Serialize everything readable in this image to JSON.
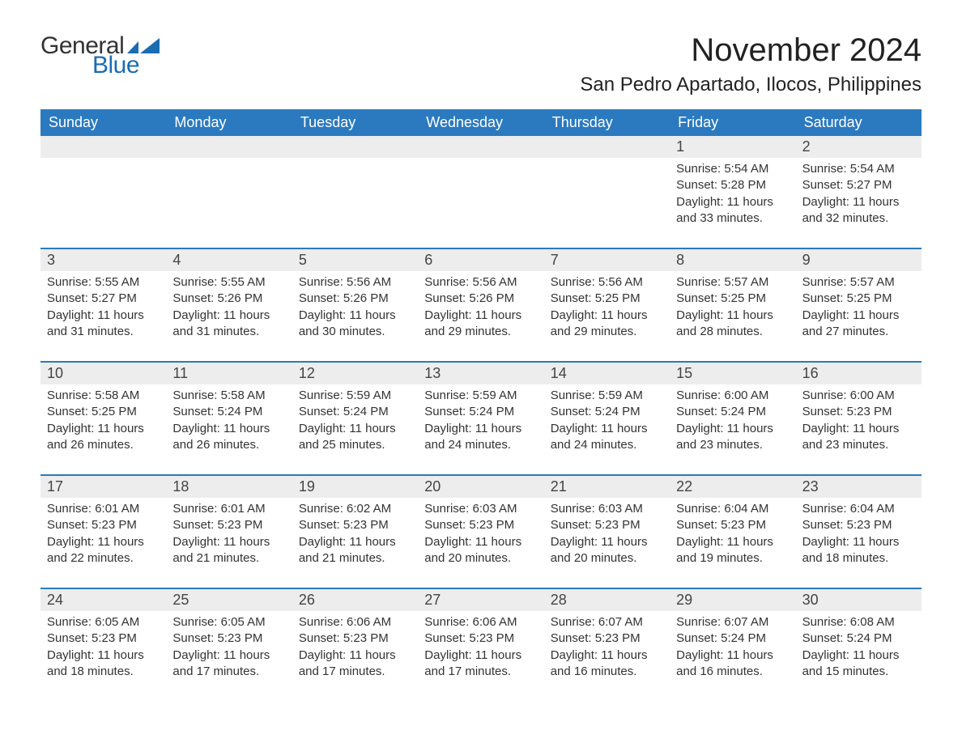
{
  "logo": {
    "text1": "General",
    "text2": "Blue",
    "flag_color": "#1a6cb3"
  },
  "title": "November 2024",
  "location": "San Pedro Apartado, Ilocos, Philippines",
  "colors": {
    "header_bg": "#2b7ac0",
    "header_text": "#ffffff",
    "row_border": "#2b7ac0",
    "daynum_bg": "#ededed",
    "body_text": "#333333",
    "page_bg": "#ffffff"
  },
  "weekdays": [
    "Sunday",
    "Monday",
    "Tuesday",
    "Wednesday",
    "Thursday",
    "Friday",
    "Saturday"
  ],
  "weeks": [
    [
      null,
      null,
      null,
      null,
      null,
      {
        "n": "1",
        "sunrise": "5:54 AM",
        "sunset": "5:28 PM",
        "daylight": "11 hours and 33 minutes."
      },
      {
        "n": "2",
        "sunrise": "5:54 AM",
        "sunset": "5:27 PM",
        "daylight": "11 hours and 32 minutes."
      }
    ],
    [
      {
        "n": "3",
        "sunrise": "5:55 AM",
        "sunset": "5:27 PM",
        "daylight": "11 hours and 31 minutes."
      },
      {
        "n": "4",
        "sunrise": "5:55 AM",
        "sunset": "5:26 PM",
        "daylight": "11 hours and 31 minutes."
      },
      {
        "n": "5",
        "sunrise": "5:56 AM",
        "sunset": "5:26 PM",
        "daylight": "11 hours and 30 minutes."
      },
      {
        "n": "6",
        "sunrise": "5:56 AM",
        "sunset": "5:26 PM",
        "daylight": "11 hours and 29 minutes."
      },
      {
        "n": "7",
        "sunrise": "5:56 AM",
        "sunset": "5:25 PM",
        "daylight": "11 hours and 29 minutes."
      },
      {
        "n": "8",
        "sunrise": "5:57 AM",
        "sunset": "5:25 PM",
        "daylight": "11 hours and 28 minutes."
      },
      {
        "n": "9",
        "sunrise": "5:57 AM",
        "sunset": "5:25 PM",
        "daylight": "11 hours and 27 minutes."
      }
    ],
    [
      {
        "n": "10",
        "sunrise": "5:58 AM",
        "sunset": "5:25 PM",
        "daylight": "11 hours and 26 minutes."
      },
      {
        "n": "11",
        "sunrise": "5:58 AM",
        "sunset": "5:24 PM",
        "daylight": "11 hours and 26 minutes."
      },
      {
        "n": "12",
        "sunrise": "5:59 AM",
        "sunset": "5:24 PM",
        "daylight": "11 hours and 25 minutes."
      },
      {
        "n": "13",
        "sunrise": "5:59 AM",
        "sunset": "5:24 PM",
        "daylight": "11 hours and 24 minutes."
      },
      {
        "n": "14",
        "sunrise": "5:59 AM",
        "sunset": "5:24 PM",
        "daylight": "11 hours and 24 minutes."
      },
      {
        "n": "15",
        "sunrise": "6:00 AM",
        "sunset": "5:24 PM",
        "daylight": "11 hours and 23 minutes."
      },
      {
        "n": "16",
        "sunrise": "6:00 AM",
        "sunset": "5:23 PM",
        "daylight": "11 hours and 23 minutes."
      }
    ],
    [
      {
        "n": "17",
        "sunrise": "6:01 AM",
        "sunset": "5:23 PM",
        "daylight": "11 hours and 22 minutes."
      },
      {
        "n": "18",
        "sunrise": "6:01 AM",
        "sunset": "5:23 PM",
        "daylight": "11 hours and 21 minutes."
      },
      {
        "n": "19",
        "sunrise": "6:02 AM",
        "sunset": "5:23 PM",
        "daylight": "11 hours and 21 minutes."
      },
      {
        "n": "20",
        "sunrise": "6:03 AM",
        "sunset": "5:23 PM",
        "daylight": "11 hours and 20 minutes."
      },
      {
        "n": "21",
        "sunrise": "6:03 AM",
        "sunset": "5:23 PM",
        "daylight": "11 hours and 20 minutes."
      },
      {
        "n": "22",
        "sunrise": "6:04 AM",
        "sunset": "5:23 PM",
        "daylight": "11 hours and 19 minutes."
      },
      {
        "n": "23",
        "sunrise": "6:04 AM",
        "sunset": "5:23 PM",
        "daylight": "11 hours and 18 minutes."
      }
    ],
    [
      {
        "n": "24",
        "sunrise": "6:05 AM",
        "sunset": "5:23 PM",
        "daylight": "11 hours and 18 minutes."
      },
      {
        "n": "25",
        "sunrise": "6:05 AM",
        "sunset": "5:23 PM",
        "daylight": "11 hours and 17 minutes."
      },
      {
        "n": "26",
        "sunrise": "6:06 AM",
        "sunset": "5:23 PM",
        "daylight": "11 hours and 17 minutes."
      },
      {
        "n": "27",
        "sunrise": "6:06 AM",
        "sunset": "5:23 PM",
        "daylight": "11 hours and 17 minutes."
      },
      {
        "n": "28",
        "sunrise": "6:07 AM",
        "sunset": "5:23 PM",
        "daylight": "11 hours and 16 minutes."
      },
      {
        "n": "29",
        "sunrise": "6:07 AM",
        "sunset": "5:24 PM",
        "daylight": "11 hours and 16 minutes."
      },
      {
        "n": "30",
        "sunrise": "6:08 AM",
        "sunset": "5:24 PM",
        "daylight": "11 hours and 15 minutes."
      }
    ]
  ],
  "labels": {
    "sunrise": "Sunrise:",
    "sunset": "Sunset:",
    "daylight": "Daylight:"
  }
}
